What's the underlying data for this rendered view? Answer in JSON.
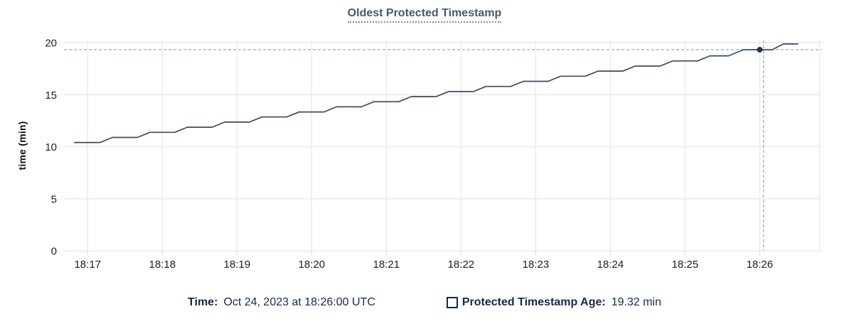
{
  "header": {
    "title": "Oldest Protected Timestamp"
  },
  "colors": {
    "title": "#475872",
    "series_line": "#3a4a66",
    "hover_dot": "#223450",
    "crosshair": "#a4b1bf",
    "grid_h": "#efefef",
    "grid_v": "#ececec",
    "tick_text": "#1e1e1e",
    "legend_text": "#15294a"
  },
  "chart_data": {
    "type": "line",
    "title": "Oldest Protected Timestamp",
    "xlabel": "",
    "ylabel": "time (min)",
    "ylim": [
      0,
      20
    ],
    "yticks": [
      0,
      5,
      10,
      15,
      20
    ],
    "x_unit": "seconds after 18:16:00 UTC on Oct 24, 2023",
    "xlim": [
      41,
      650
    ],
    "xticks": [
      {
        "t": 60,
        "label": "18:17"
      },
      {
        "t": 120,
        "label": "18:18"
      },
      {
        "t": 180,
        "label": "18:19"
      },
      {
        "t": 240,
        "label": "18:20"
      },
      {
        "t": 300,
        "label": "18:21"
      },
      {
        "t": 360,
        "label": "18:22"
      },
      {
        "t": 420,
        "label": "18:23"
      },
      {
        "t": 480,
        "label": "18:24"
      },
      {
        "t": 540,
        "label": "18:25"
      },
      {
        "t": 600,
        "label": "18:26"
      }
    ],
    "extra_vgrid_t": [
      648
    ],
    "grid": true,
    "legend_position": "bottom-center",
    "series": [
      {
        "name": "Protected Timestamp Age",
        "unit": "min",
        "points": [
          [
            49,
            10.4
          ],
          [
            70,
            10.4
          ],
          [
            80,
            10.89
          ],
          [
            100,
            10.89
          ],
          [
            110,
            11.38
          ],
          [
            130,
            11.38
          ],
          [
            140,
            11.87
          ],
          [
            160,
            11.87
          ],
          [
            170,
            12.36
          ],
          [
            190,
            12.36
          ],
          [
            200,
            12.85
          ],
          [
            220,
            12.85
          ],
          [
            230,
            13.34
          ],
          [
            250,
            13.34
          ],
          [
            260,
            13.83
          ],
          [
            280,
            13.83
          ],
          [
            290,
            14.32
          ],
          [
            310,
            14.32
          ],
          [
            320,
            14.81
          ],
          [
            340,
            14.81
          ],
          [
            350,
            15.3
          ],
          [
            370,
            15.3
          ],
          [
            380,
            15.79
          ],
          [
            400,
            15.79
          ],
          [
            410,
            16.28
          ],
          [
            430,
            16.28
          ],
          [
            440,
            16.77
          ],
          [
            460,
            16.77
          ],
          [
            470,
            17.26
          ],
          [
            490,
            17.26
          ],
          [
            500,
            17.75
          ],
          [
            520,
            17.75
          ],
          [
            530,
            18.24
          ],
          [
            550,
            18.24
          ],
          [
            560,
            18.73
          ],
          [
            575,
            18.73
          ],
          [
            587,
            19.32
          ],
          [
            610,
            19.32
          ],
          [
            619,
            19.87
          ],
          [
            631,
            19.87
          ]
        ]
      }
    ],
    "hover": {
      "crosshair_t": 603,
      "point_t": 600,
      "point_value": 19.32,
      "time_label": "Oct 24, 2023 at 18:26:00 UTC",
      "value_label": "19.32 min"
    }
  },
  "legend": {
    "time_label": "Time:",
    "time_value": "Oct 24, 2023 at 18:26:00 UTC",
    "series_label": "Protected Timestamp Age:",
    "series_value": "19.32 min"
  }
}
